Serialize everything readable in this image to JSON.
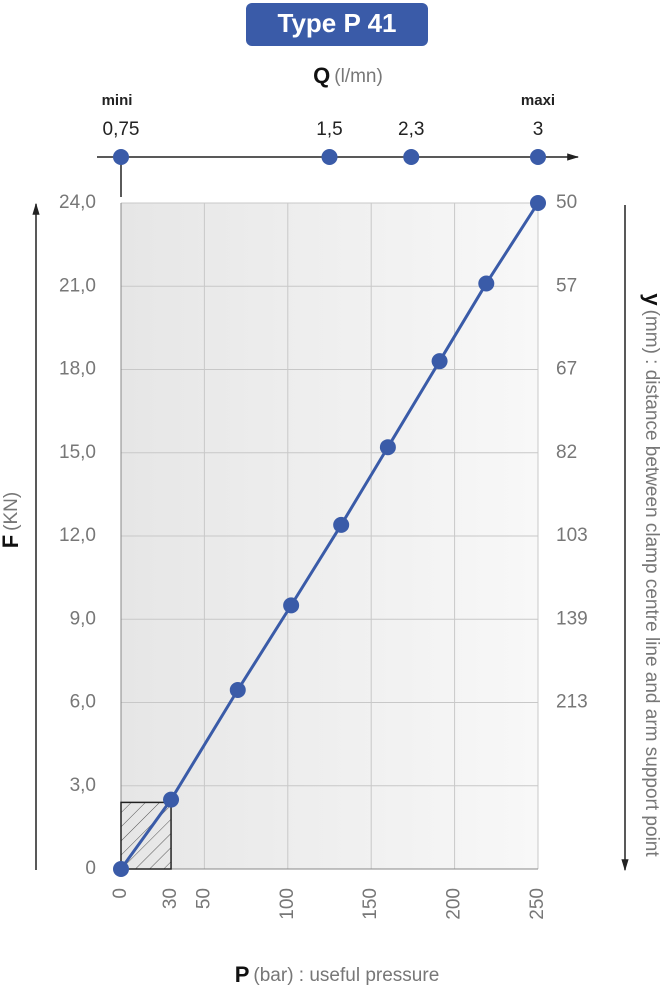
{
  "chart_data": {
    "type": "line",
    "title": "Type P 41",
    "x_label": {
      "symbol": "P",
      "text": "(bar) : useful pressure"
    },
    "y_label": {
      "symbol": "F",
      "text": "(KN)"
    },
    "y2_label": {
      "symbol": "y",
      "text": "(mm) : distance between clamp centre line and arm support point"
    },
    "q_label": {
      "symbol": "Q",
      "text": "(l/mn)"
    },
    "q_min_label": "mini",
    "q_max_label": "maxi",
    "q_points": [
      {
        "value": 0.75,
        "label": "0,75",
        "p": 0
      },
      {
        "value": 1.5,
        "label": "1,5",
        "p": 125
      },
      {
        "value": 2.3,
        "label": "2,3",
        "p": 174
      },
      {
        "value": 3,
        "label": "3",
        "p": 250
      }
    ],
    "x": [
      0,
      30,
      70,
      102,
      132,
      160,
      191,
      219,
      250
    ],
    "series": [
      {
        "name": "P 41",
        "color": "#3a5ba8",
        "values": [
          0,
          2.5,
          6.45,
          9.5,
          12.4,
          15.2,
          18.3,
          21.1,
          24
        ]
      }
    ],
    "hatched_region": {
      "x": [
        0,
        30
      ],
      "y": [
        0,
        2.4
      ]
    },
    "xlim": [
      0,
      250
    ],
    "ylim": [
      0,
      24
    ],
    "xticks": [
      0,
      30,
      50,
      100,
      150,
      200,
      250
    ],
    "xgrid": [
      50,
      100,
      150,
      200,
      250
    ],
    "yticks": [
      0,
      {
        "value": 3,
        "label": "3,0"
      },
      {
        "value": 6,
        "label": "6,0"
      },
      {
        "value": 9,
        "label": "9,0"
      },
      {
        "value": 12,
        "label": "12,0"
      },
      {
        "value": 15,
        "label": "15,0"
      },
      {
        "value": 18,
        "label": "18,0"
      },
      {
        "value": 21,
        "label": "21,0"
      },
      {
        "value": 24,
        "label": "24,0"
      }
    ],
    "y2ticks": [
      50,
      57,
      67,
      82,
      103,
      139,
      213
    ],
    "y2_positions": [
      24,
      21,
      18,
      15,
      12,
      9,
      6
    ],
    "grid": true
  }
}
